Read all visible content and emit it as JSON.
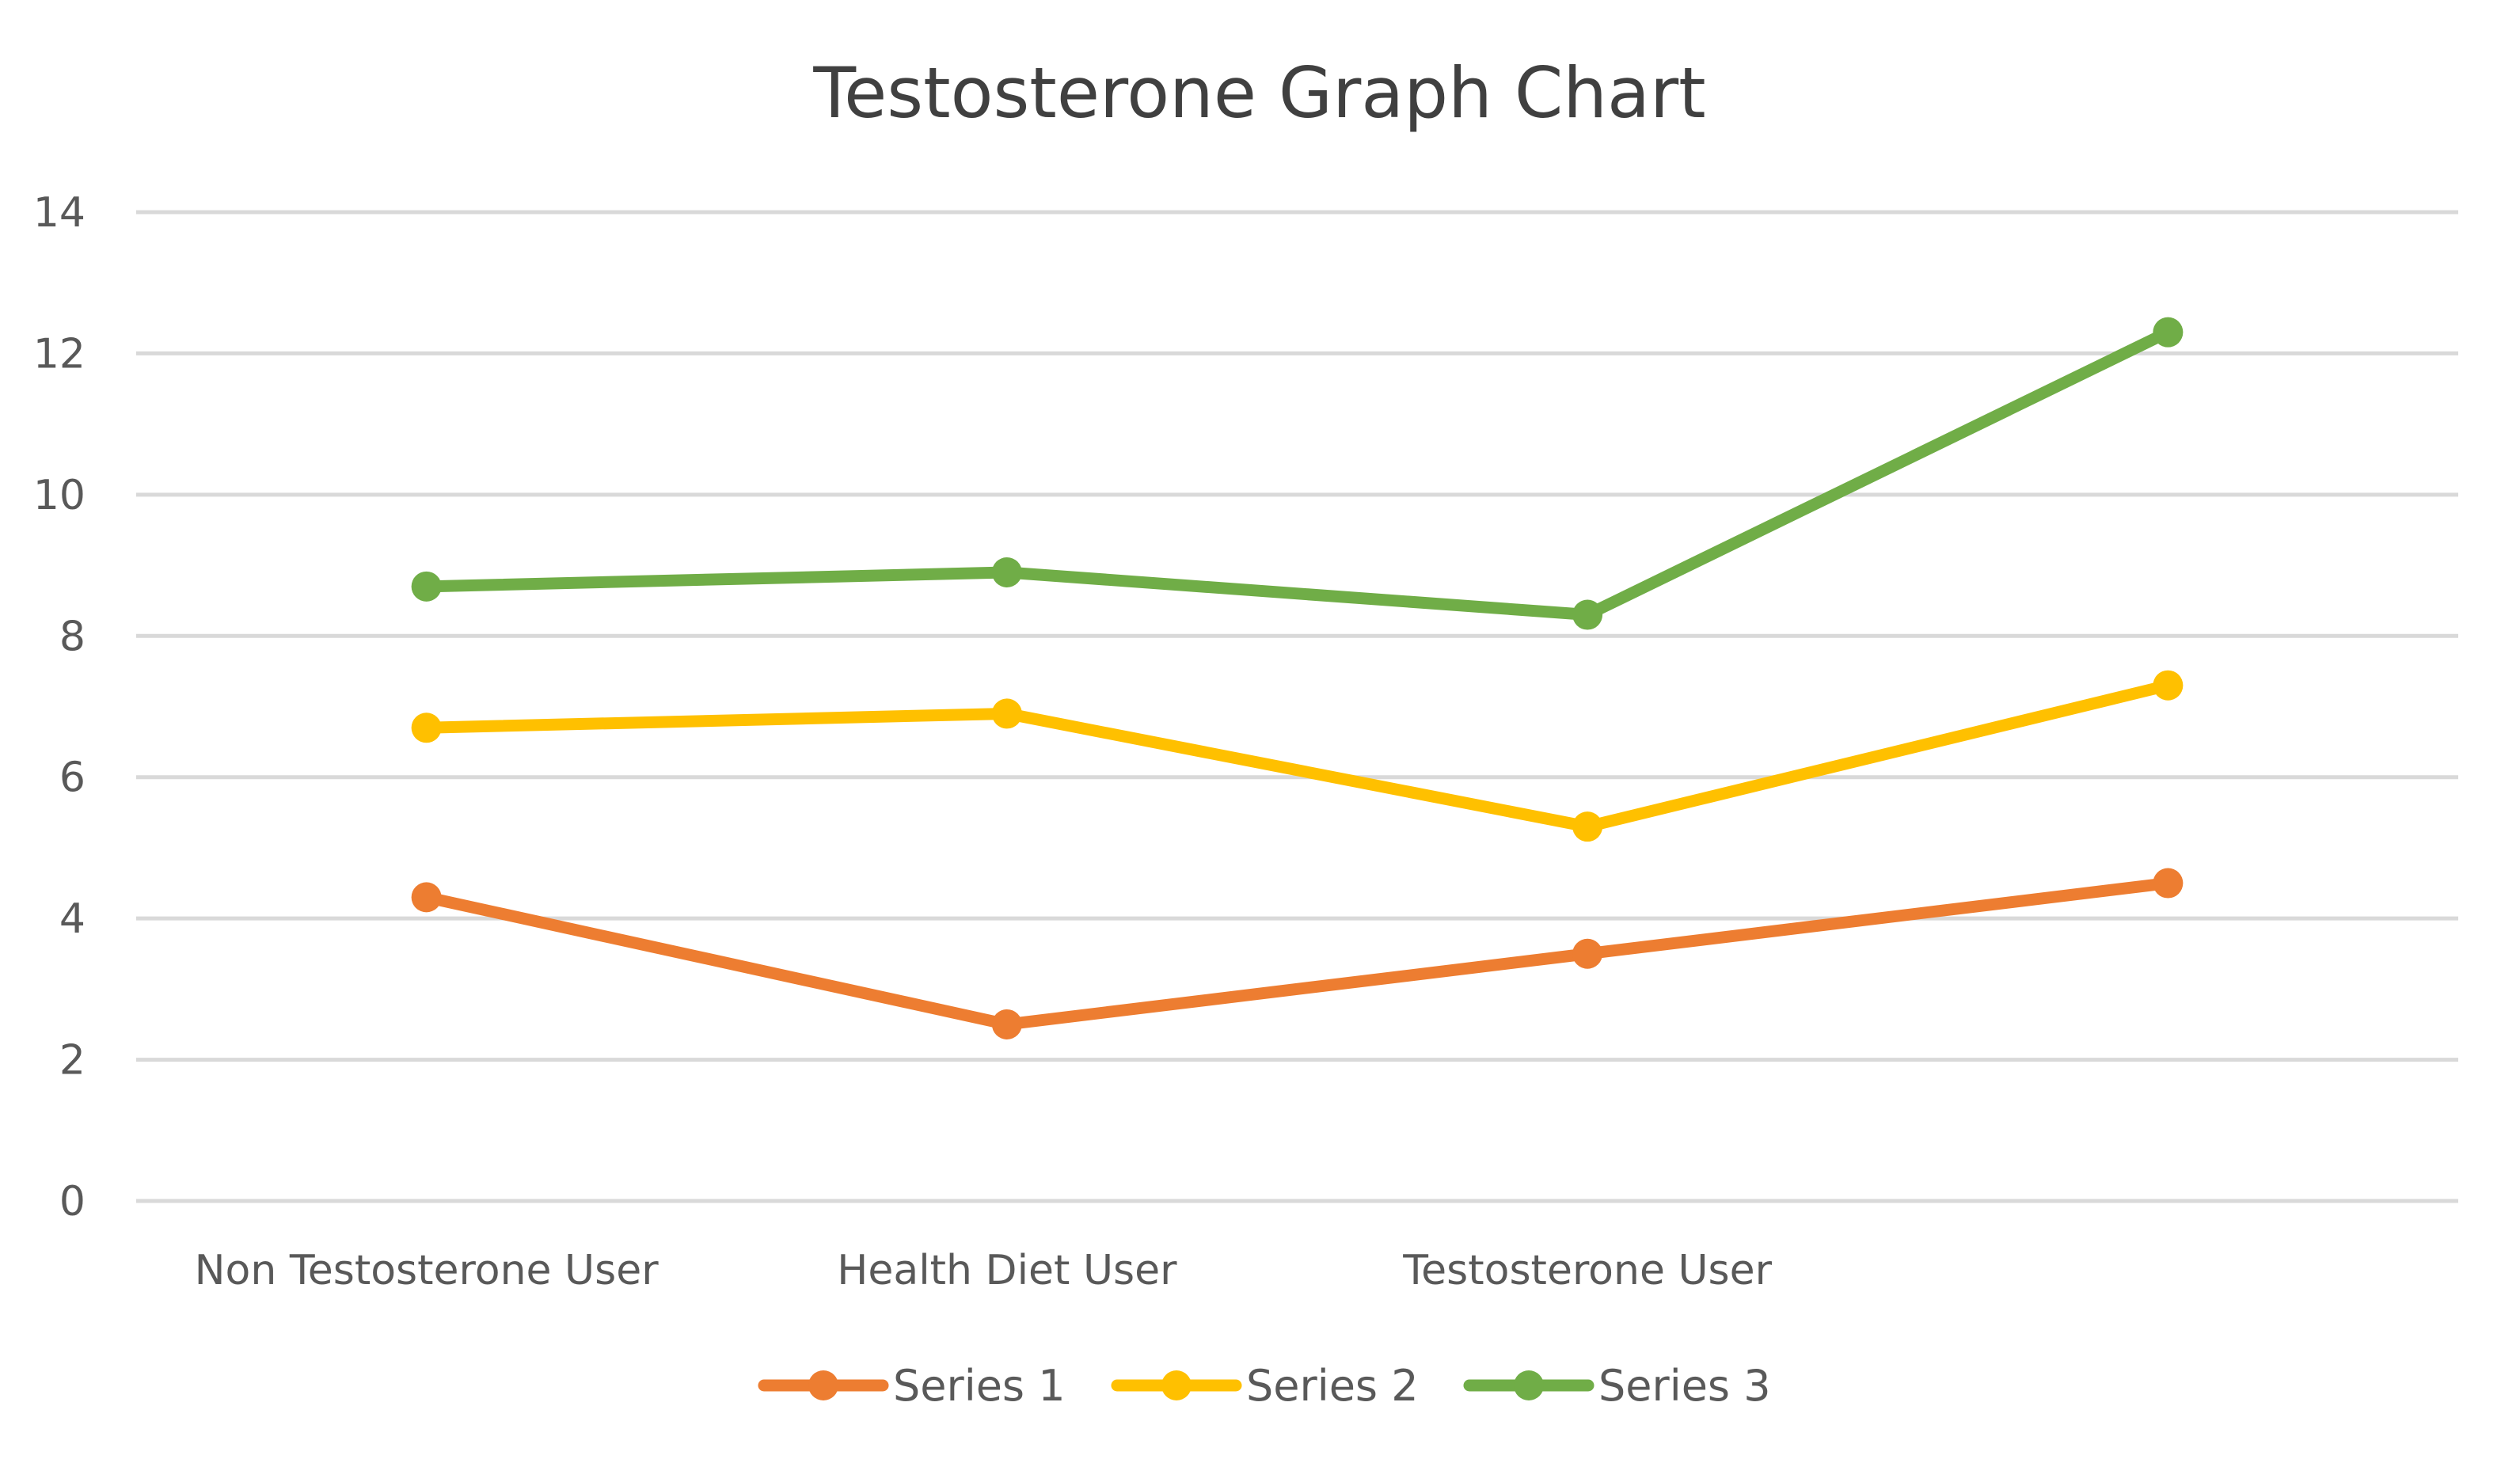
{
  "chart_data": {
    "type": "line",
    "title": "Testosterone Graph Chart",
    "xlabel": "",
    "ylabel": "",
    "categories": [
      "Non Testosterone User",
      "Health Diet User",
      "Testosterone User",
      ""
    ],
    "series": [
      {
        "name": "Series 1",
        "color": "#ED7D31",
        "values": [
          4.3,
          2.5,
          3.5,
          4.5
        ]
      },
      {
        "name": "Series 2",
        "color": "#FFC000",
        "values": [
          6.7,
          6.9,
          5.3,
          7.3
        ]
      },
      {
        "name": "Series 3",
        "color": "#70AD47",
        "values": [
          8.7,
          8.9,
          8.3,
          12.3
        ]
      }
    ],
    "ylim": [
      0,
      14
    ],
    "yticks": [
      "0",
      "2",
      "4",
      "6",
      "8",
      "10",
      "12",
      "14"
    ],
    "grid": true,
    "legend_position": "bottom",
    "gridline_color": "#D9D9D9"
  }
}
